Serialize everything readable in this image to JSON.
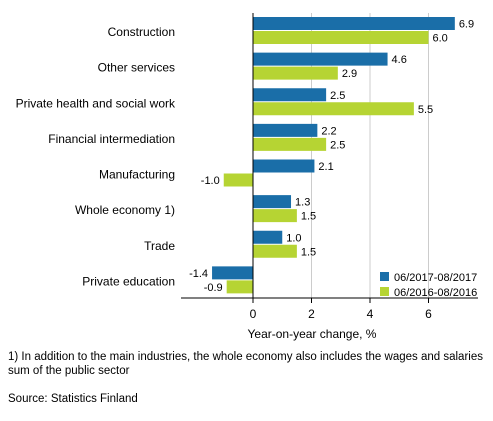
{
  "chart_data": {
    "type": "bar",
    "orientation": "horizontal",
    "categories": [
      "Construction",
      "Other services",
      "Private health and social work",
      "Financial intermediation",
      "Manufacturing",
      "Whole economy 1)",
      "Trade",
      "Private education"
    ],
    "series": [
      {
        "name": "06/2017-08/2017",
        "color": "#1a6ea8",
        "values": [
          6.9,
          4.6,
          2.5,
          2.2,
          2.1,
          1.3,
          1.0,
          -1.4
        ],
        "labels": [
          "6.9",
          "4.6",
          "2.5",
          "2.2",
          "2.1",
          "1.3",
          "1.0",
          "-1.4"
        ]
      },
      {
        "name": "06/2016-08/2016",
        "color": "#b6d433",
        "values": [
          6.0,
          2.9,
          5.5,
          2.5,
          -1.0,
          1.5,
          1.5,
          -0.9
        ],
        "labels": [
          "6.0",
          "2.9",
          "5.5",
          "2.5",
          "-1.0",
          "1.5",
          "1.5",
          "-0.9"
        ]
      }
    ],
    "xlabel": "Year-on-year change, %",
    "xticks": [
      "0",
      "2",
      "4",
      "6"
    ],
    "xtick_values": [
      0,
      2,
      4,
      6
    ],
    "xlim": [
      -2.4,
      8.0
    ],
    "grid": true,
    "legend_position": "bottom-right"
  },
  "footnote": "1) In addition to the main industries, the whole economy also includes the wages and salaries sum of the public sector",
  "source": "Source: Statistics Finland"
}
